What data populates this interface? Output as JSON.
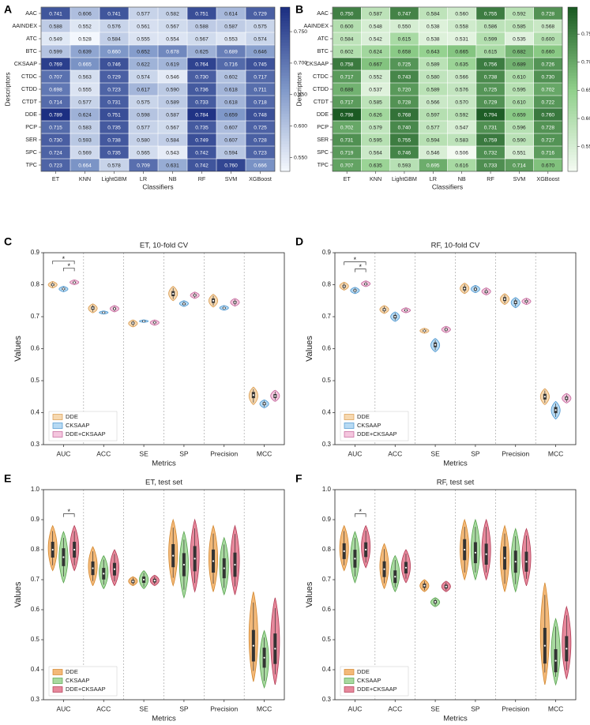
{
  "chart_data": [
    {
      "panel": "A",
      "type": "heatmap",
      "title": "",
      "xlabel": "Classifiers",
      "ylabel": "Descriptors",
      "columns": [
        "ET",
        "KNN",
        "LightGBM",
        "LR",
        "NB",
        "RF",
        "SVM",
        "XGBoost"
      ],
      "rows": [
        "AAC",
        "AAINDEX",
        "ATC",
        "BTC",
        "CKSAAP",
        "CTDC",
        "CTDD",
        "CTDT",
        "DDE",
        "PCP",
        "SER",
        "SPC",
        "TPC"
      ],
      "values": [
        [
          "0.741",
          "0.606",
          "0.741",
          "0.577",
          "0.582",
          "0.751",
          "0.614",
          "0.729"
        ],
        [
          "0.588",
          "0.552",
          "0.576",
          "0.561",
          "0.567",
          "0.588",
          "0.587",
          "0.575"
        ],
        [
          "0.549",
          "0.528",
          "0.584",
          "0.555",
          "0.554",
          "0.567",
          "0.553",
          "0.574"
        ],
        [
          "0.599",
          "0.639",
          "0.660",
          "0.652",
          "0.678",
          "0.625",
          "0.689",
          "0.646"
        ],
        [
          "0.769",
          "0.665",
          "0.746",
          "0.622",
          "0.619",
          "0.764",
          "0.716",
          "0.745"
        ],
        [
          "0.707",
          "0.563",
          "0.729",
          "0.574",
          "0.546",
          "0.730",
          "0.602",
          "0.717"
        ],
        [
          "0.698",
          "0.555",
          "0.723",
          "0.617",
          "0.590",
          "0.736",
          "0.618",
          "0.711"
        ],
        [
          "0.714",
          "0.577",
          "0.731",
          "0.575",
          "0.589",
          "0.733",
          "0.618",
          "0.718"
        ],
        [
          "0.789",
          "0.624",
          "0.751",
          "0.598",
          "0.587",
          "0.784",
          "0.659",
          "0.748"
        ],
        [
          "0.715",
          "0.583",
          "0.735",
          "0.577",
          "0.567",
          "0.735",
          "0.607",
          "0.725"
        ],
        [
          "0.730",
          "0.593",
          "0.738",
          "0.580",
          "0.584",
          "0.749",
          "0.607",
          "0.728"
        ],
        [
          "0.724",
          "0.569",
          "0.735",
          "0.565",
          "0.543",
          "0.742",
          "0.594",
          "0.723"
        ],
        [
          "0.723",
          "0.664",
          "0.578",
          "0.709",
          "0.631",
          "0.742",
          "0.760",
          "0.666"
        ]
      ],
      "vmin": 0.528,
      "vmax": 0.789,
      "colorbar_ticks": [
        "0.550",
        "0.600",
        "0.650",
        "0.700",
        "0.750"
      ],
      "colormap": {
        "low": "#f3f7fd",
        "mid": "#7f98c9",
        "high": "#1c2f82"
      }
    },
    {
      "panel": "B",
      "type": "heatmap",
      "title": "",
      "xlabel": "Classifiers",
      "ylabel": "Descriptors",
      "columns": [
        "ET",
        "KNN",
        "LightGBM",
        "LR",
        "NB",
        "RF",
        "SVM",
        "XGBoost"
      ],
      "rows": [
        "AAC",
        "AAINDEX",
        "ATC",
        "BTC",
        "CKSAAP",
        "CTDC",
        "CTDD",
        "CTDT",
        "DDE",
        "PCP",
        "SER",
        "SPC",
        "TPC"
      ],
      "values": [
        [
          "0.750",
          "0.587",
          "0.747",
          "0.584",
          "0.560",
          "0.755",
          "0.592",
          "0.728"
        ],
        [
          "0.600",
          "0.548",
          "0.550",
          "0.538",
          "0.558",
          "0.586",
          "0.585",
          "0.568"
        ],
        [
          "0.584",
          "0.542",
          "0.615",
          "0.538",
          "0.531",
          "0.599",
          "0.535",
          "0.600"
        ],
        [
          "0.602",
          "0.624",
          "0.658",
          "0.643",
          "0.665",
          "0.615",
          "0.682",
          "0.660"
        ],
        [
          "0.758",
          "0.667",
          "0.725",
          "0.589",
          "0.635",
          "0.756",
          "0.689",
          "0.726"
        ],
        [
          "0.717",
          "0.552",
          "0.743",
          "0.580",
          "0.566",
          "0.738",
          "0.610",
          "0.730"
        ],
        [
          "0.688",
          "0.537",
          "0.720",
          "0.589",
          "0.576",
          "0.725",
          "0.595",
          "0.702"
        ],
        [
          "0.717",
          "0.585",
          "0.728",
          "0.566",
          "0.570",
          "0.729",
          "0.610",
          "0.722"
        ],
        [
          "0.798",
          "0.626",
          "0.768",
          "0.597",
          "0.592",
          "0.794",
          "0.659",
          "0.760"
        ],
        [
          "0.702",
          "0.579",
          "0.740",
          "0.577",
          "0.547",
          "0.731",
          "0.596",
          "0.728"
        ],
        [
          "0.731",
          "0.595",
          "0.755",
          "0.594",
          "0.583",
          "0.759",
          "0.590",
          "0.727"
        ],
        [
          "0.719",
          "0.564",
          "0.746",
          "0.546",
          "0.506",
          "0.732",
          "0.551",
          "0.716"
        ],
        [
          "0.707",
          "0.635",
          "0.593",
          "0.695",
          "0.616",
          "0.733",
          "0.714",
          "0.670"
        ]
      ],
      "vmin": 0.506,
      "vmax": 0.798,
      "colorbar_ticks": [
        "0.550",
        "0.600",
        "0.650",
        "0.700",
        "0.750"
      ],
      "colormap": {
        "low": "#f3faf1",
        "mid": "#8fcf8a",
        "high": "#1b5a23"
      }
    },
    {
      "panel": "C",
      "type": "violin",
      "title": "ET, 10-fold CV",
      "xlabel": "Metrics",
      "ylabel": "Values",
      "ylim": [
        0.3,
        0.9
      ],
      "yticks": [
        "0.3",
        "0.4",
        "0.5",
        "0.6",
        "0.7",
        "0.8",
        "0.9"
      ],
      "categories": [
        "AUC",
        "ACC",
        "SE",
        "SP",
        "Precision",
        "MCC"
      ],
      "series": [
        {
          "name": "DDE",
          "fill": "#f6d8b0",
          "stroke": "#d99a4e",
          "values": [
            {
              "mean": 0.8,
              "min": 0.79,
              "max": 0.81
            },
            {
              "mean": 0.727,
              "min": 0.712,
              "max": 0.74
            },
            {
              "mean": 0.68,
              "min": 0.668,
              "max": 0.69
            },
            {
              "mean": 0.772,
              "min": 0.75,
              "max": 0.795
            },
            {
              "mean": 0.75,
              "min": 0.73,
              "max": 0.77
            },
            {
              "mean": 0.455,
              "min": 0.425,
              "max": 0.48
            }
          ]
        },
        {
          "name": "CKSAAP",
          "fill": "#b7daf3",
          "stroke": "#4a95cf",
          "values": [
            {
              "mean": 0.787,
              "min": 0.778,
              "max": 0.795
            },
            {
              "mean": 0.713,
              "min": 0.708,
              "max": 0.718
            },
            {
              "mean": 0.686,
              "min": 0.682,
              "max": 0.69
            },
            {
              "mean": 0.74,
              "min": 0.732,
              "max": 0.75
            },
            {
              "mean": 0.727,
              "min": 0.72,
              "max": 0.735
            },
            {
              "mean": 0.428,
              "min": 0.415,
              "max": 0.44
            }
          ]
        },
        {
          "name": "DDE+CKSAAP",
          "fill": "#f4c6de",
          "stroke": "#c4639a",
          "values": [
            {
              "mean": 0.807,
              "min": 0.8,
              "max": 0.815
            },
            {
              "mean": 0.725,
              "min": 0.715,
              "max": 0.735
            },
            {
              "mean": 0.682,
              "min": 0.673,
              "max": 0.69
            },
            {
              "mean": 0.767,
              "min": 0.757,
              "max": 0.777
            },
            {
              "mean": 0.745,
              "min": 0.733,
              "max": 0.757
            },
            {
              "mean": 0.452,
              "min": 0.435,
              "max": 0.47
            }
          ]
        }
      ],
      "significance": [
        [
          "0",
          "2"
        ],
        [
          "1",
          "2"
        ]
      ],
      "significance_label": "*"
    },
    {
      "panel": "D",
      "type": "violin",
      "title": "RF, 10-fold CV",
      "xlabel": "Metrics",
      "ylabel": "Values",
      "ylim": [
        0.3,
        0.9
      ],
      "yticks": [
        "0.3",
        "0.4",
        "0.5",
        "0.6",
        "0.7",
        "0.8",
        "0.9"
      ],
      "categories": [
        "AUC",
        "ACC",
        "SE",
        "SP",
        "Precision",
        "MCC"
      ],
      "series": [
        {
          "name": "DDE",
          "fill": "#f6d8b0",
          "stroke": "#d99a4e",
          "values": [
            {
              "mean": 0.795,
              "min": 0.783,
              "max": 0.808
            },
            {
              "mean": 0.722,
              "min": 0.71,
              "max": 0.735
            },
            {
              "mean": 0.656,
              "min": 0.648,
              "max": 0.664
            },
            {
              "mean": 0.788,
              "min": 0.772,
              "max": 0.805
            },
            {
              "mean": 0.755,
              "min": 0.738,
              "max": 0.772
            },
            {
              "mean": 0.45,
              "min": 0.425,
              "max": 0.475
            }
          ]
        },
        {
          "name": "CKSAAP",
          "fill": "#b7daf3",
          "stroke": "#4a95cf",
          "values": [
            {
              "mean": 0.782,
              "min": 0.772,
              "max": 0.792
            },
            {
              "mean": 0.7,
              "min": 0.685,
              "max": 0.715
            },
            {
              "mean": 0.612,
              "min": 0.59,
              "max": 0.632
            },
            {
              "mean": 0.786,
              "min": 0.775,
              "max": 0.798
            },
            {
              "mean": 0.745,
              "min": 0.728,
              "max": 0.76
            },
            {
              "mean": 0.408,
              "min": 0.38,
              "max": 0.435
            }
          ]
        },
        {
          "name": "DDE+CKSAAP",
          "fill": "#f4c6de",
          "stroke": "#c4639a",
          "values": [
            {
              "mean": 0.802,
              "min": 0.794,
              "max": 0.812
            },
            {
              "mean": 0.72,
              "min": 0.712,
              "max": 0.728
            },
            {
              "mean": 0.66,
              "min": 0.65,
              "max": 0.67
            },
            {
              "mean": 0.778,
              "min": 0.768,
              "max": 0.79
            },
            {
              "mean": 0.748,
              "min": 0.738,
              "max": 0.758
            },
            {
              "mean": 0.445,
              "min": 0.43,
              "max": 0.46
            }
          ]
        }
      ],
      "significance": [
        [
          "0",
          "2"
        ],
        [
          "1",
          "2"
        ]
      ],
      "significance_label": "*"
    },
    {
      "panel": "E",
      "type": "violin",
      "title": "ET, test set",
      "xlabel": "Metrics",
      "ylabel": "Values",
      "ylim": [
        0.3,
        1.0
      ],
      "yticks": [
        "0.3",
        "0.4",
        "0.5",
        "0.6",
        "0.7",
        "0.8",
        "0.9",
        "1.0"
      ],
      "categories": [
        "AUC",
        "ACC",
        "SE",
        "SP",
        "Precision",
        "MCC"
      ],
      "series": [
        {
          "name": "DDE",
          "fill": "#f3b979",
          "stroke": "#d3872e",
          "values": [
            {
              "mean": 0.8,
              "min": 0.73,
              "max": 0.88
            },
            {
              "mean": 0.738,
              "min": 0.68,
              "max": 0.81
            },
            {
              "mean": 0.694,
              "min": 0.68,
              "max": 0.71
            },
            {
              "mean": 0.78,
              "min": 0.68,
              "max": 0.9
            },
            {
              "mean": 0.762,
              "min": 0.66,
              "max": 0.88
            },
            {
              "mean": 0.48,
              "min": 0.36,
              "max": 0.66
            }
          ]
        },
        {
          "name": "CKSAAP",
          "fill": "#a8d9a0",
          "stroke": "#56a24c",
          "values": [
            {
              "mean": 0.775,
              "min": 0.69,
              "max": 0.86
            },
            {
              "mean": 0.72,
              "min": 0.67,
              "max": 0.78
            },
            {
              "mean": 0.7,
              "min": 0.67,
              "max": 0.73
            },
            {
              "mean": 0.75,
              "min": 0.64,
              "max": 0.86
            },
            {
              "mean": 0.738,
              "min": 0.65,
              "max": 0.84
            },
            {
              "mean": 0.44,
              "min": 0.34,
              "max": 0.53
            }
          ]
        },
        {
          "name": "DDE+CKSAAP",
          "fill": "#e6899c",
          "stroke": "#b23a54",
          "values": [
            {
              "mean": 0.8,
              "min": 0.73,
              "max": 0.88
            },
            {
              "mean": 0.735,
              "min": 0.68,
              "max": 0.8
            },
            {
              "mean": 0.697,
              "min": 0.68,
              "max": 0.715
            },
            {
              "mean": 0.77,
              "min": 0.66,
              "max": 0.9
            },
            {
              "mean": 0.75,
              "min": 0.65,
              "max": 0.88
            },
            {
              "mean": 0.47,
              "min": 0.35,
              "max": 0.64
            }
          ]
        }
      ],
      "significance": [
        [
          "1",
          "2"
        ]
      ],
      "significance_label": "*"
    },
    {
      "panel": "F",
      "type": "violin",
      "title": "RF, test set",
      "xlabel": "Metrics",
      "ylabel": "Values",
      "ylim": [
        0.3,
        1.0
      ],
      "yticks": [
        "0.3",
        "0.4",
        "0.5",
        "0.6",
        "0.7",
        "0.8",
        "0.9",
        "1.0"
      ],
      "categories": [
        "AUC",
        "ACC",
        "SE",
        "SP",
        "Precision",
        "MCC"
      ],
      "series": [
        {
          "name": "DDE",
          "fill": "#f3b979",
          "stroke": "#d3872e",
          "values": [
            {
              "mean": 0.795,
              "min": 0.73,
              "max": 0.88
            },
            {
              "mean": 0.735,
              "min": 0.67,
              "max": 0.82
            },
            {
              "mean": 0.68,
              "min": 0.66,
              "max": 0.7
            },
            {
              "mean": 0.8,
              "min": 0.7,
              "max": 0.9
            },
            {
              "mean": 0.772,
              "min": 0.66,
              "max": 0.88
            },
            {
              "mean": 0.48,
              "min": 0.35,
              "max": 0.69
            }
          ]
        },
        {
          "name": "CKSAAP",
          "fill": "#a8d9a0",
          "stroke": "#56a24c",
          "values": [
            {
              "mean": 0.77,
              "min": 0.69,
              "max": 0.86
            },
            {
              "mean": 0.71,
              "min": 0.66,
              "max": 0.78
            },
            {
              "mean": 0.626,
              "min": 0.61,
              "max": 0.64
            },
            {
              "mean": 0.79,
              "min": 0.7,
              "max": 0.9
            },
            {
              "mean": 0.76,
              "min": 0.66,
              "max": 0.87
            },
            {
              "mean": 0.43,
              "min": 0.35,
              "max": 0.57
            }
          ]
        },
        {
          "name": "DDE+CKSAAP",
          "fill": "#e6899c",
          "stroke": "#b23a54",
          "values": [
            {
              "mean": 0.8,
              "min": 0.74,
              "max": 0.88
            },
            {
              "mean": 0.74,
              "min": 0.69,
              "max": 0.8
            },
            {
              "mean": 0.677,
              "min": 0.66,
              "max": 0.695
            },
            {
              "mean": 0.785,
              "min": 0.7,
              "max": 0.9
            },
            {
              "mean": 0.76,
              "min": 0.68,
              "max": 0.87
            },
            {
              "mean": 0.47,
              "min": 0.37,
              "max": 0.61
            }
          ]
        }
      ],
      "significance": [
        [
          "1",
          "2"
        ]
      ],
      "significance_label": "*"
    }
  ]
}
